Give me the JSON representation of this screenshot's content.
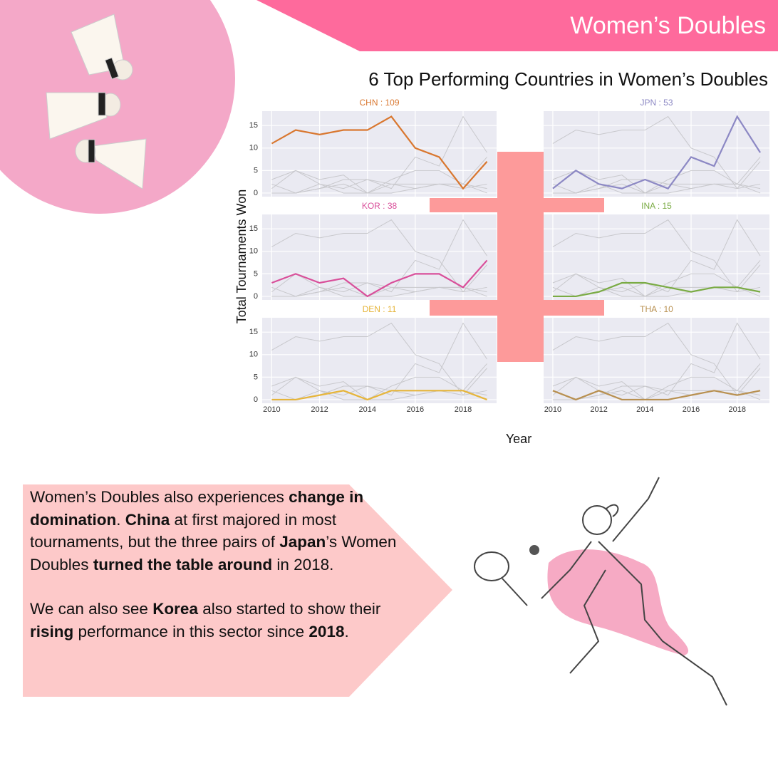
{
  "header": {
    "title": "Women’s Doubles"
  },
  "chart_data": {
    "type": "line",
    "title": "6 Top Performing Countries in Women’s Doubles",
    "y_label": "Total Tournaments Won",
    "x_label": "Year",
    "x": [
      2010,
      2011,
      2012,
      2013,
      2014,
      2015,
      2016,
      2017,
      2018,
      2019
    ],
    "xlim": [
      2009.6,
      2019.4
    ],
    "xticks": [
      2010,
      2012,
      2014,
      2016,
      2018
    ],
    "ylim": [
      -0.8,
      18.2
    ],
    "yticks": [
      0,
      5,
      10,
      15
    ],
    "grid": true,
    "other_color": "#c8c8cc",
    "series": [
      {
        "name": "CHN : 109",
        "color": "#d9772f",
        "values": [
          11,
          14,
          13,
          14,
          14,
          17,
          10,
          8,
          1,
          7
        ]
      },
      {
        "name": "JPN : 53",
        "color": "#8c88c4",
        "values": [
          1,
          5,
          2,
          1,
          3,
          1,
          8,
          6,
          17,
          9
        ]
      },
      {
        "name": "KOR : 38",
        "color": "#d94f9a",
        "values": [
          3,
          5,
          3,
          4,
          0,
          3,
          5,
          5,
          2,
          8
        ]
      },
      {
        "name": "INA : 15",
        "color": "#7aab44",
        "values": [
          0,
          0,
          1,
          3,
          3,
          2,
          1,
          2,
          2,
          1
        ]
      },
      {
        "name": "DEN : 11",
        "color": "#e6b53a",
        "values": [
          0,
          0,
          1,
          2,
          0,
          2,
          2,
          2,
          2,
          0
        ]
      },
      {
        "name": "THA : 10",
        "color": "#b89050",
        "values": [
          2,
          0,
          2,
          0,
          0,
          0,
          1,
          2,
          1,
          2
        ]
      }
    ]
  },
  "text": {
    "paragraphs": [
      [
        {
          "text": "Women’s Doubles also experiences ",
          "bold": false
        },
        {
          "text": "change in domination",
          "bold": true
        },
        {
          "text": ". ",
          "bold": false
        },
        {
          "text": "China",
          "bold": true
        },
        {
          "text": " at first majored in most tournaments, but the three pairs of ",
          "bold": false
        },
        {
          "text": "Japan",
          "bold": true
        },
        {
          "text": "’s Women Doubles ",
          "bold": false
        },
        {
          "text": "turned the table around",
          "bold": true
        },
        {
          "text": " in 2018.",
          "bold": false
        }
      ],
      [
        {
          "text": "We can also see ",
          "bold": false
        },
        {
          "text": "Korea",
          "bold": true
        },
        {
          "text": " also started to show their ",
          "bold": false
        },
        {
          "text": "rising",
          "bold": true
        },
        {
          "text": " performance in this sector since ",
          "bold": false
        },
        {
          "text": "2018",
          "bold": true
        },
        {
          "text": ".",
          "bold": false
        }
      ]
    ]
  }
}
